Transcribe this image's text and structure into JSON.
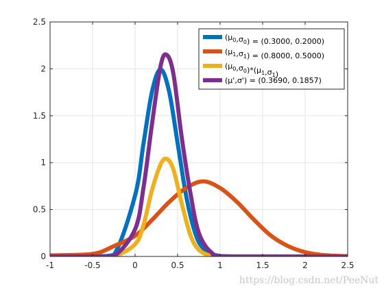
{
  "chart_data": {
    "type": "line",
    "title": "",
    "xlabel": "",
    "ylabel": "",
    "xlim": [
      -1,
      2.5
    ],
    "ylim": [
      0,
      2.5
    ],
    "xticks": [
      "-1",
      "-0.5",
      "0",
      "0.5",
      "1",
      "1.5",
      "2",
      "2.5"
    ],
    "yticks": [
      "0",
      "0.5",
      "1",
      "1.5",
      "2",
      "2.5"
    ],
    "grid": true,
    "legend_position": "top-right",
    "series": [
      {
        "label_parts": [
          [
            "t",
            "("
          ],
          [
            "t",
            "μ"
          ],
          [
            "sub",
            "0"
          ],
          [
            "t",
            ","
          ],
          [
            "t",
            "σ"
          ],
          [
            "sub",
            "0"
          ],
          [
            "t",
            ") = (0.3000, 0.2000)"
          ]
        ],
        "color": "#0072BD",
        "x": [
          -1.0,
          -0.5,
          -0.25,
          0.0,
          0.1,
          0.2,
          0.3,
          0.4,
          0.5,
          0.6,
          0.7,
          0.8,
          1.0,
          1.5,
          2.5
        ],
        "y": [
          0.0,
          0.0004,
          0.016,
          0.65,
          1.21,
          1.76,
          1.995,
          1.76,
          1.21,
          0.65,
          0.27,
          0.09,
          0.004,
          0.0,
          0.0
        ]
      },
      {
        "label_parts": [
          [
            "t",
            "("
          ],
          [
            "t",
            "μ"
          ],
          [
            "sub",
            "1"
          ],
          [
            "t",
            ","
          ],
          [
            "t",
            "σ"
          ],
          [
            "sub",
            "1"
          ],
          [
            "t",
            ") = (0.8000, 0.5000)"
          ]
        ],
        "color": "#D95319",
        "x": [
          -1.0,
          -0.5,
          -0.25,
          0.0,
          0.2,
          0.4,
          0.6,
          0.8,
          1.0,
          1.2,
          1.4,
          1.6,
          1.8,
          2.0,
          2.2,
          2.5
        ],
        "y": [
          0.012,
          0.027,
          0.11,
          0.22,
          0.39,
          0.58,
          0.73,
          0.8,
          0.73,
          0.58,
          0.39,
          0.22,
          0.11,
          0.045,
          0.016,
          0.002
        ]
      },
      {
        "label_parts": [
          [
            "t",
            "("
          ],
          [
            "t",
            "μ"
          ],
          [
            "sub",
            "0"
          ],
          [
            "t",
            ","
          ],
          [
            "t",
            "σ"
          ],
          [
            "sub",
            "0"
          ],
          [
            "t",
            ")*("
          ],
          [
            "t",
            "μ"
          ],
          [
            "sub",
            "1"
          ],
          [
            "t",
            ","
          ],
          [
            "t",
            "σ"
          ],
          [
            "sub",
            "1"
          ],
          [
            "t",
            ")"
          ]
        ],
        "color": "#EDB120",
        "x": [
          -1.0,
          -0.5,
          -0.25,
          0.0,
          0.1,
          0.2,
          0.3,
          0.37,
          0.45,
          0.55,
          0.65,
          0.75,
          0.9,
          1.1,
          2.5
        ],
        "y": [
          0.0,
          0.0,
          0.002,
          0.13,
          0.34,
          0.71,
          0.98,
          1.04,
          0.93,
          0.56,
          0.23,
          0.07,
          0.005,
          0.0,
          0.0
        ]
      },
      {
        "label_parts": [
          [
            "t",
            "("
          ],
          [
            "t",
            "μ'"
          ],
          [
            "t",
            ","
          ],
          [
            "t",
            "σ'"
          ],
          [
            "t",
            ") = (0.3690, 0.1857)"
          ]
        ],
        "color": "#7E2F8E",
        "x": [
          -1.0,
          -0.5,
          -0.25,
          0.0,
          0.1,
          0.2,
          0.3,
          0.37,
          0.45,
          0.55,
          0.65,
          0.75,
          0.9,
          1.1,
          2.5
        ],
        "y": [
          0.0,
          0.0,
          0.004,
          0.29,
          0.74,
          1.42,
          2.03,
          2.15,
          1.95,
          1.26,
          0.68,
          0.25,
          0.04,
          0.0,
          0.0
        ]
      }
    ]
  },
  "watermark": "https://blog.csdn.net/PeeNut"
}
